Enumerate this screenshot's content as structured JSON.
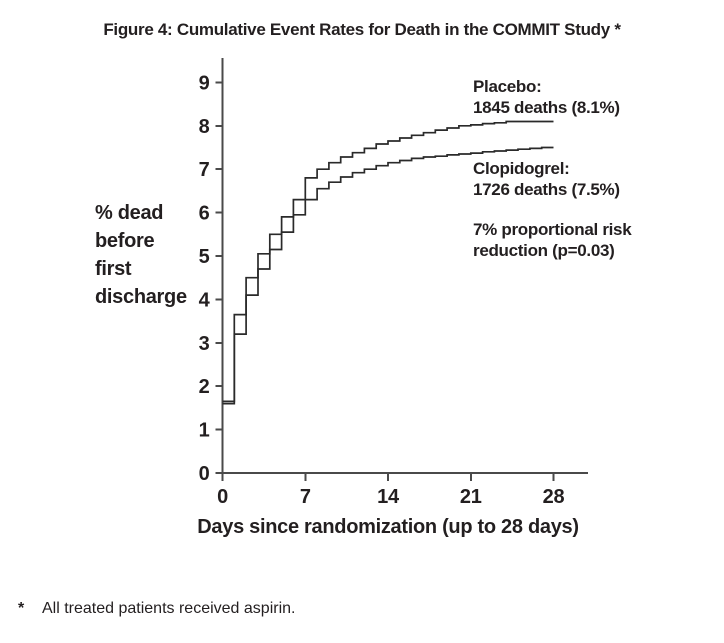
{
  "figure": {
    "title": "Figure 4: Cumulative Event Rates for Death in the COMMIT Study *",
    "footnote_marker": "*",
    "footnote_text": "All treated patients received aspirin."
  },
  "chart_data": {
    "type": "line",
    "subtype": "step",
    "title": "Figure 4: Cumulative Event Rates for Death in the COMMIT Study *",
    "xlabel": "Days since randomization (up to 28 days)",
    "ylabel": "% dead\nbefore\nfirst\ndischarge",
    "xlim": [
      0,
      31
    ],
    "ylim": [
      0,
      9.5
    ],
    "x_ticks": [
      0,
      7,
      14,
      21,
      28
    ],
    "y_ticks": [
      0,
      1,
      2,
      3,
      4,
      5,
      6,
      7,
      8,
      9
    ],
    "grid": false,
    "line_color": "#2a2a2a",
    "axis_color": "#4a4a4a",
    "x": [
      0,
      1,
      2,
      3,
      4,
      5,
      6,
      7,
      8,
      9,
      10,
      11,
      12,
      13,
      14,
      15,
      16,
      17,
      18,
      19,
      20,
      21,
      22,
      23,
      24,
      25,
      26,
      27,
      28
    ],
    "series": [
      {
        "name": "Placebo",
        "annotation": "Placebo:\n1845 deaths (8.1%)",
        "deaths": 1845,
        "event_rate_pct": 8.1,
        "values": [
          1.65,
          3.65,
          4.5,
          5.05,
          5.5,
          5.9,
          6.3,
          6.8,
          7.0,
          7.15,
          7.28,
          7.38,
          7.48,
          7.58,
          7.65,
          7.72,
          7.78,
          7.84,
          7.9,
          7.95,
          8.0,
          8.02,
          8.05,
          8.07,
          8.1,
          8.1,
          8.1,
          8.1,
          8.1
        ]
      },
      {
        "name": "Clopidogrel",
        "annotation": "Clopidogrel:\n1726 deaths (7.5%)",
        "deaths": 1726,
        "event_rate_pct": 7.5,
        "values": [
          1.6,
          3.2,
          4.1,
          4.7,
          5.15,
          5.55,
          5.95,
          6.3,
          6.55,
          6.7,
          6.82,
          6.92,
          7.0,
          7.08,
          7.15,
          7.2,
          7.25,
          7.28,
          7.3,
          7.33,
          7.35,
          7.37,
          7.4,
          7.42,
          7.44,
          7.46,
          7.48,
          7.5,
          7.5
        ]
      }
    ],
    "annotation": "7% proportional risk\nreduction (p=0.03)"
  }
}
